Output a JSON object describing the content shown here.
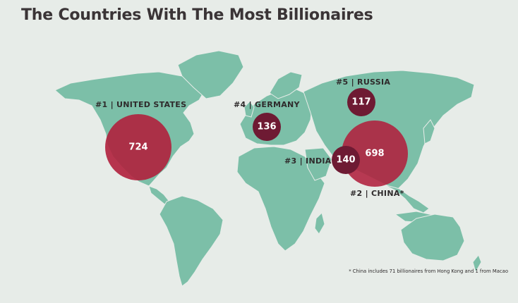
{
  "title": "The Countries With The Most Billionaires",
  "colors": {
    "background": "#e7ece8",
    "land": "#7cbfa8",
    "bubble_large": "#b0203c",
    "bubble_dark": "#6e1a33"
  },
  "countries": [
    {
      "rank_label": "#1 | UNITED STATES",
      "value": "724",
      "billionaires": 724
    },
    {
      "rank_label": "#2 | CHINA*",
      "value": "698",
      "billionaires": 698
    },
    {
      "rank_label": "#3 | INDIA",
      "value": "140",
      "billionaires": 140
    },
    {
      "rank_label": "#4 | GERMANY",
      "value": "136",
      "billionaires": 136
    },
    {
      "rank_label": "#5 | RUSSIA",
      "value": "117",
      "billionaires": 117
    }
  ],
  "footnote": "* China includes 71 billionaires from Hong Kong and 1 from Macao"
}
